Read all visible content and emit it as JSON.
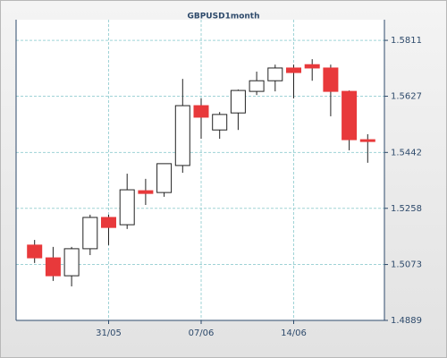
{
  "chart_data": {
    "type": "candlestick",
    "title": "GBPUSD1month",
    "categories": [
      null,
      null,
      null,
      null,
      "31/05",
      null,
      null,
      null,
      null,
      "07/06",
      null,
      null,
      null,
      null,
      "14/06",
      null,
      null,
      null,
      null
    ],
    "series": [
      {
        "name": null,
        "up_color": "#ffffff",
        "down_color": "#e8393b",
        "open": [
          1.5137,
          1.5095,
          1.5036,
          1.5125,
          1.5228,
          1.5204,
          1.5316,
          1.531,
          1.5399,
          1.5596,
          1.5516,
          1.5572,
          1.5643,
          1.5678,
          1.572,
          1.5731,
          1.572,
          1.5643,
          1.5484
        ],
        "high": [
          1.5154,
          1.5131,
          1.5131,
          1.5237,
          1.5237,
          1.5372,
          1.5355,
          1.5405,
          1.5684,
          1.562,
          1.5575,
          1.5649,
          1.5708,
          1.5731,
          1.5731,
          1.5749,
          1.5731,
          1.5646,
          1.5502
        ],
        "low": [
          1.5078,
          1.5019,
          1.5001,
          1.5104,
          1.5137,
          1.519,
          1.5269,
          1.5296,
          1.5375,
          1.5487,
          1.5487,
          1.5516,
          1.5631,
          1.5643,
          1.562,
          1.5678,
          1.5561,
          1.5449,
          1.5408
        ],
        "close": [
          1.5095,
          1.5036,
          1.5125,
          1.5228,
          1.5195,
          1.5319,
          1.5307,
          1.5405,
          1.5596,
          1.5558,
          1.5567,
          1.5646,
          1.5678,
          1.572,
          1.5705,
          1.572,
          1.5643,
          1.5484,
          1.5478
        ]
      }
    ],
    "ylim": [
      1.4889,
      1.5879
    ],
    "yticks": [
      1.4889,
      1.5073,
      1.5258,
      1.5442,
      1.5627,
      1.5811
    ],
    "grid": true
  }
}
